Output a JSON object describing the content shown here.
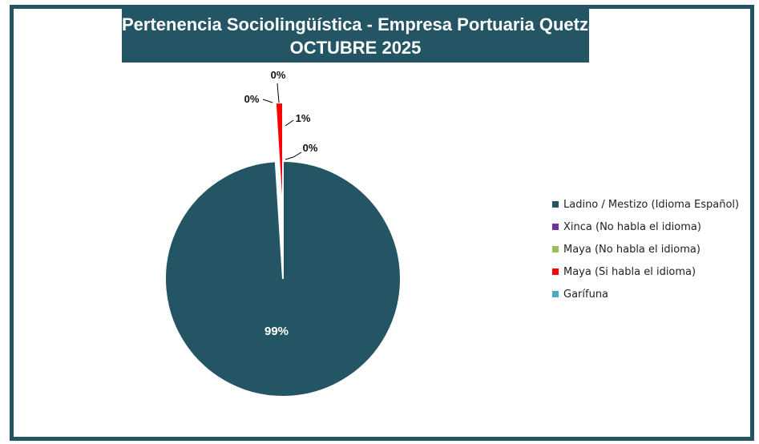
{
  "chart_data": {
    "type": "pie",
    "title": "Pertenencia Sociolingüística - Empresa Portuaria Quetzal",
    "subtitle": "OCTUBRE 2025",
    "categories": [
      "Ladino / Mestizo (Idioma Español)",
      "Xinca (No habla el idioma)",
      "Maya  (No habla el idioma)",
      "Maya  (Si habla el idioma)",
      "Garífuna"
    ],
    "values": [
      99,
      0,
      0,
      1,
      0
    ],
    "data_labels": [
      "99%",
      "0%",
      "0%",
      "1%",
      "0%"
    ],
    "colors": [
      "#245564",
      "#7030A0",
      "#9BBB59",
      "#FF0000",
      "#4BACC6"
    ],
    "legend": "right"
  }
}
